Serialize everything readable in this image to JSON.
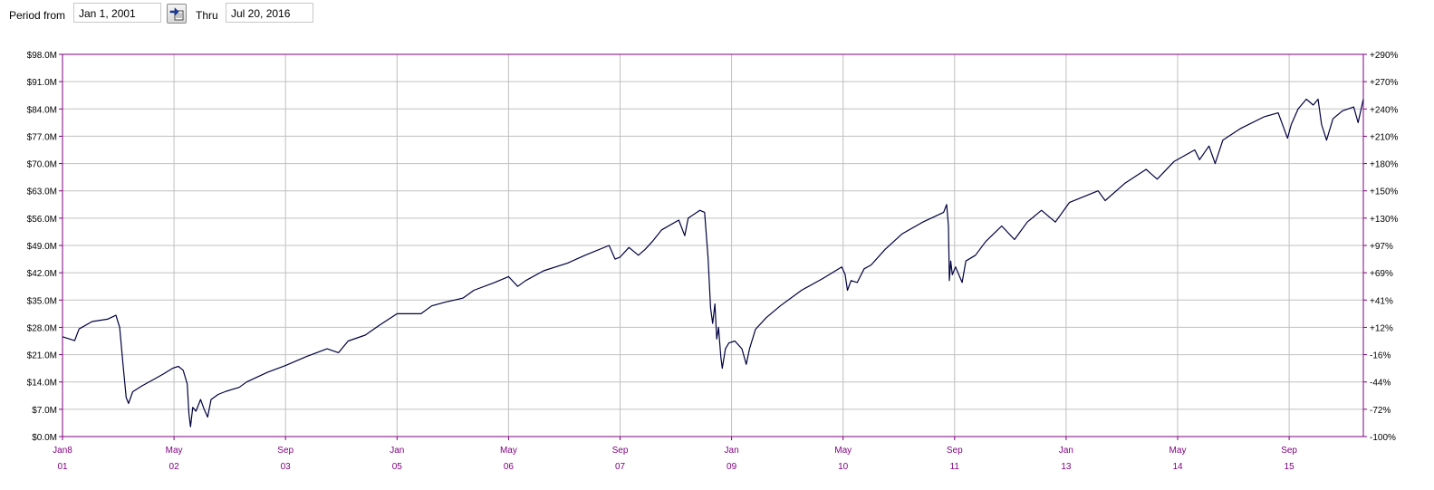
{
  "toolbar": {
    "period_from_label": "Period from",
    "from_value": "Jan 1, 2001",
    "thru_label": "Thru",
    "thru_value": "Jul 20, 2016",
    "calendar_icon": "calendar-apply-icon"
  },
  "chart_data": {
    "type": "line",
    "title": "",
    "xlabel": "",
    "ylabel": "",
    "x_range": [
      "2001-01-08",
      "2016-07-20"
    ],
    "ylim": [
      0,
      98
    ],
    "y_unit": "$M",
    "grid": true,
    "colors": {
      "line": "#000040",
      "frame": "#800080",
      "grid": "#c0c0c0",
      "x_tick_text": "#800080"
    },
    "left_ticks": [
      "$98.0M",
      "$91.0M",
      "$84.0M",
      "$77.0M",
      "$70.0M",
      "$63.0M",
      "$56.0M",
      "$49.0M",
      "$42.0M",
      "$35.0M",
      "$28.0M",
      "$21.0M",
      "$14.0M",
      "$7.0M",
      "$0.0M"
    ],
    "right_ticks": [
      "+290%",
      "+270%",
      "+240%",
      "+210%",
      "+180%",
      "+150%",
      "+130%",
      "+97%",
      "+69%",
      "+41%",
      "+12%",
      "-16%",
      "-44%",
      "-72%",
      "-100%"
    ],
    "x_ticks": [
      {
        "top": "Jan8",
        "bottom": "01",
        "date": "2001-01-08"
      },
      {
        "top": "May",
        "bottom": "02",
        "date": "2002-05-01"
      },
      {
        "top": "Sep",
        "bottom": "03",
        "date": "2003-09-01"
      },
      {
        "top": "Jan",
        "bottom": "05",
        "date": "2005-01-01"
      },
      {
        "top": "May",
        "bottom": "06",
        "date": "2006-05-01"
      },
      {
        "top": "Sep",
        "bottom": "07",
        "date": "2007-09-01"
      },
      {
        "top": "Jan",
        "bottom": "09",
        "date": "2009-01-01"
      },
      {
        "top": "May",
        "bottom": "10",
        "date": "2010-05-01"
      },
      {
        "top": "Sep",
        "bottom": "11",
        "date": "2011-09-01"
      },
      {
        "top": "Jan",
        "bottom": "13",
        "date": "2013-01-01"
      },
      {
        "top": "May",
        "bottom": "14",
        "date": "2014-05-01"
      },
      {
        "top": "Sep",
        "bottom": "15",
        "date": "2015-09-01"
      }
    ],
    "series": [
      {
        "points": [
          [
            "2001-01-08",
            25.6
          ],
          [
            "2001-03-01",
            24.6
          ],
          [
            "2001-03-20",
            27.6
          ],
          [
            "2001-05-15",
            29.5
          ],
          [
            "2001-07-20",
            30.1
          ],
          [
            "2001-08-25",
            31.1
          ],
          [
            "2001-09-10",
            28.0
          ],
          [
            "2001-09-25",
            18.0
          ],
          [
            "2001-10-08",
            10.0
          ],
          [
            "2001-10-18",
            8.5
          ],
          [
            "2001-11-05",
            11.5
          ],
          [
            "2001-12-15",
            13.0
          ],
          [
            "2002-01-20",
            14.2
          ],
          [
            "2002-03-15",
            16.0
          ],
          [
            "2002-04-25",
            17.5
          ],
          [
            "2002-05-20",
            18.0
          ],
          [
            "2002-06-10",
            17.0
          ],
          [
            "2002-06-28",
            13.5
          ],
          [
            "2002-07-05",
            6.0
          ],
          [
            "2002-07-12",
            2.5
          ],
          [
            "2002-07-22",
            7.5
          ],
          [
            "2002-08-05",
            6.5
          ],
          [
            "2002-08-25",
            9.5
          ],
          [
            "2002-09-10",
            7.0
          ],
          [
            "2002-09-25",
            5.0
          ],
          [
            "2002-10-10",
            9.5
          ],
          [
            "2002-11-10",
            10.8
          ],
          [
            "2002-12-15",
            11.6
          ],
          [
            "2003-02-10",
            12.6
          ],
          [
            "2003-03-15",
            14.0
          ],
          [
            "2003-06-15",
            16.5
          ],
          [
            "2003-09-01",
            18.2
          ],
          [
            "2003-12-01",
            20.5
          ],
          [
            "2004-03-01",
            22.5
          ],
          [
            "2004-04-20",
            21.5
          ],
          [
            "2004-06-01",
            24.5
          ],
          [
            "2004-08-15",
            26.0
          ],
          [
            "2004-10-15",
            28.5
          ],
          [
            "2005-01-01",
            31.5
          ],
          [
            "2005-04-15",
            31.5
          ],
          [
            "2005-06-01",
            33.5
          ],
          [
            "2005-08-01",
            34.5
          ],
          [
            "2005-10-15",
            35.5
          ],
          [
            "2005-12-01",
            37.5
          ],
          [
            "2006-03-01",
            39.5
          ],
          [
            "2006-05-01",
            41.0
          ],
          [
            "2006-06-10",
            38.5
          ],
          [
            "2006-07-15",
            40.0
          ],
          [
            "2006-10-01",
            42.5
          ],
          [
            "2007-01-15",
            44.5
          ],
          [
            "2007-04-01",
            46.5
          ],
          [
            "2007-07-15",
            49.0
          ],
          [
            "2007-08-10",
            45.5
          ],
          [
            "2007-09-01",
            46.0
          ],
          [
            "2007-10-10",
            48.5
          ],
          [
            "2007-11-20",
            46.5
          ],
          [
            "2007-12-20",
            48.0
          ],
          [
            "2008-01-20",
            50.0
          ],
          [
            "2008-03-01",
            53.0
          ],
          [
            "2008-05-15",
            55.5
          ],
          [
            "2008-06-10",
            51.5
          ],
          [
            "2008-06-25",
            56.0
          ],
          [
            "2008-08-15",
            58.0
          ],
          [
            "2008-09-05",
            57.5
          ],
          [
            "2008-09-20",
            46.0
          ],
          [
            "2008-10-01",
            33.0
          ],
          [
            "2008-10-10",
            29.0
          ],
          [
            "2008-10-20",
            34.0
          ],
          [
            "2008-10-28",
            25.0
          ],
          [
            "2008-11-05",
            28.0
          ],
          [
            "2008-11-15",
            20.5
          ],
          [
            "2008-11-21",
            17.5
          ],
          [
            "2008-12-05",
            22.5
          ],
          [
            "2008-12-20",
            24.0
          ],
          [
            "2009-01-15",
            24.5
          ],
          [
            "2009-02-15",
            22.5
          ],
          [
            "2009-03-06",
            18.5
          ],
          [
            "2009-03-20",
            22.5
          ],
          [
            "2009-04-15",
            27.5
          ],
          [
            "2009-06-01",
            30.5
          ],
          [
            "2009-08-01",
            33.5
          ],
          [
            "2009-11-01",
            37.5
          ],
          [
            "2010-02-01",
            40.5
          ],
          [
            "2010-04-25",
            43.5
          ],
          [
            "2010-05-10",
            41.5
          ],
          [
            "2010-05-20",
            37.5
          ],
          [
            "2010-06-05",
            40.0
          ],
          [
            "2010-07-02",
            39.5
          ],
          [
            "2010-08-01",
            43.0
          ],
          [
            "2010-09-01",
            44.0
          ],
          [
            "2010-11-01",
            48.0
          ],
          [
            "2011-01-15",
            52.0
          ],
          [
            "2011-04-15",
            55.0
          ],
          [
            "2011-07-15",
            57.5
          ],
          [
            "2011-07-28",
            59.5
          ],
          [
            "2011-08-05",
            54.0
          ],
          [
            "2011-08-09",
            40.0
          ],
          [
            "2011-08-15",
            45.0
          ],
          [
            "2011-08-22",
            41.5
          ],
          [
            "2011-09-05",
            43.5
          ],
          [
            "2011-10-04",
            39.5
          ],
          [
            "2011-10-20",
            45.0
          ],
          [
            "2011-12-01",
            46.5
          ],
          [
            "2012-01-15",
            50.0
          ],
          [
            "2012-03-25",
            54.0
          ],
          [
            "2012-05-20",
            50.5
          ],
          [
            "2012-07-15",
            55.0
          ],
          [
            "2012-09-15",
            58.0
          ],
          [
            "2012-11-15",
            55.0
          ],
          [
            "2013-01-15",
            60.0
          ],
          [
            "2013-05-20",
            63.0
          ],
          [
            "2013-06-20",
            60.5
          ],
          [
            "2013-09-15",
            65.0
          ],
          [
            "2013-12-15",
            68.5
          ],
          [
            "2014-02-01",
            66.0
          ],
          [
            "2014-04-15",
            70.5
          ],
          [
            "2014-07-15",
            73.5
          ],
          [
            "2014-08-05",
            71.0
          ],
          [
            "2014-09-15",
            74.5
          ],
          [
            "2014-10-12",
            70.0
          ],
          [
            "2014-11-15",
            76.0
          ],
          [
            "2015-02-01",
            79.0
          ],
          [
            "2015-05-15",
            82.0
          ],
          [
            "2015-07-15",
            83.0
          ],
          [
            "2015-08-25",
            76.5
          ],
          [
            "2015-09-10",
            80.0
          ],
          [
            "2015-10-10",
            84.0
          ],
          [
            "2015-11-15",
            86.5
          ],
          [
            "2015-12-15",
            85.0
          ],
          [
            "2016-01-05",
            86.5
          ],
          [
            "2016-01-20",
            80.0
          ],
          [
            "2016-02-11",
            76.0
          ],
          [
            "2016-03-10",
            81.5
          ],
          [
            "2016-04-20",
            83.5
          ],
          [
            "2016-06-08",
            84.5
          ],
          [
            "2016-06-27",
            80.5
          ],
          [
            "2016-07-20",
            86.5
          ]
        ]
      }
    ]
  }
}
